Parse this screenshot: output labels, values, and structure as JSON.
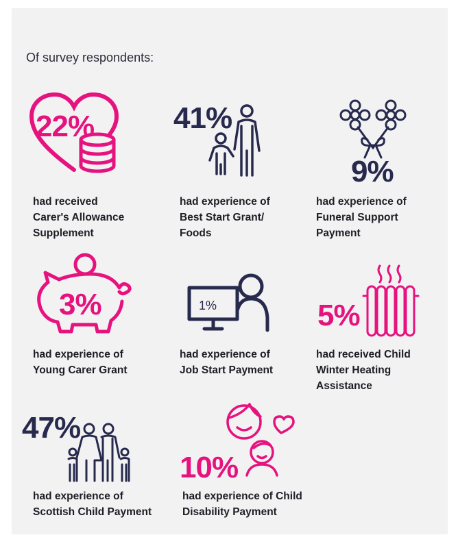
{
  "heading": "Of survey respondents:",
  "colors": {
    "pink": "#e6127e",
    "navy": "#272a4d",
    "panel": "#f2f2f3"
  },
  "stats": [
    {
      "value": "22%",
      "icon": "heart-coins-icon",
      "lines": [
        "had received",
        "Carer's Allowance",
        "Supplement"
      ]
    },
    {
      "value": "41%",
      "icon": "parent-child-icon",
      "lines": [
        "had experience of",
        "Best Start Grant/",
        "Foods"
      ]
    },
    {
      "value": "9%",
      "icon": "flowers-icon",
      "lines": [
        "had experience of",
        "Funeral Support",
        "Payment"
      ]
    },
    {
      "value": "3%",
      "icon": "piggy-bank-icon",
      "lines": [
        "had experience of",
        "Young Carer Grant"
      ]
    },
    {
      "value": "1%",
      "icon": "person-computer-icon",
      "lines": [
        "had experience of",
        "Job Start Payment"
      ]
    },
    {
      "value": "5%",
      "icon": "radiator-icon",
      "lines": [
        "had received Child",
        "Winter Heating",
        "Assistance"
      ]
    },
    {
      "value": "47%",
      "icon": "family-icon",
      "lines": [
        "had experience of",
        "Scottish Child Payment"
      ]
    },
    {
      "value": "10%",
      "icon": "parent-child-heart-icon",
      "lines": [
        "had experience of Child",
        "Disability Payment"
      ]
    }
  ]
}
